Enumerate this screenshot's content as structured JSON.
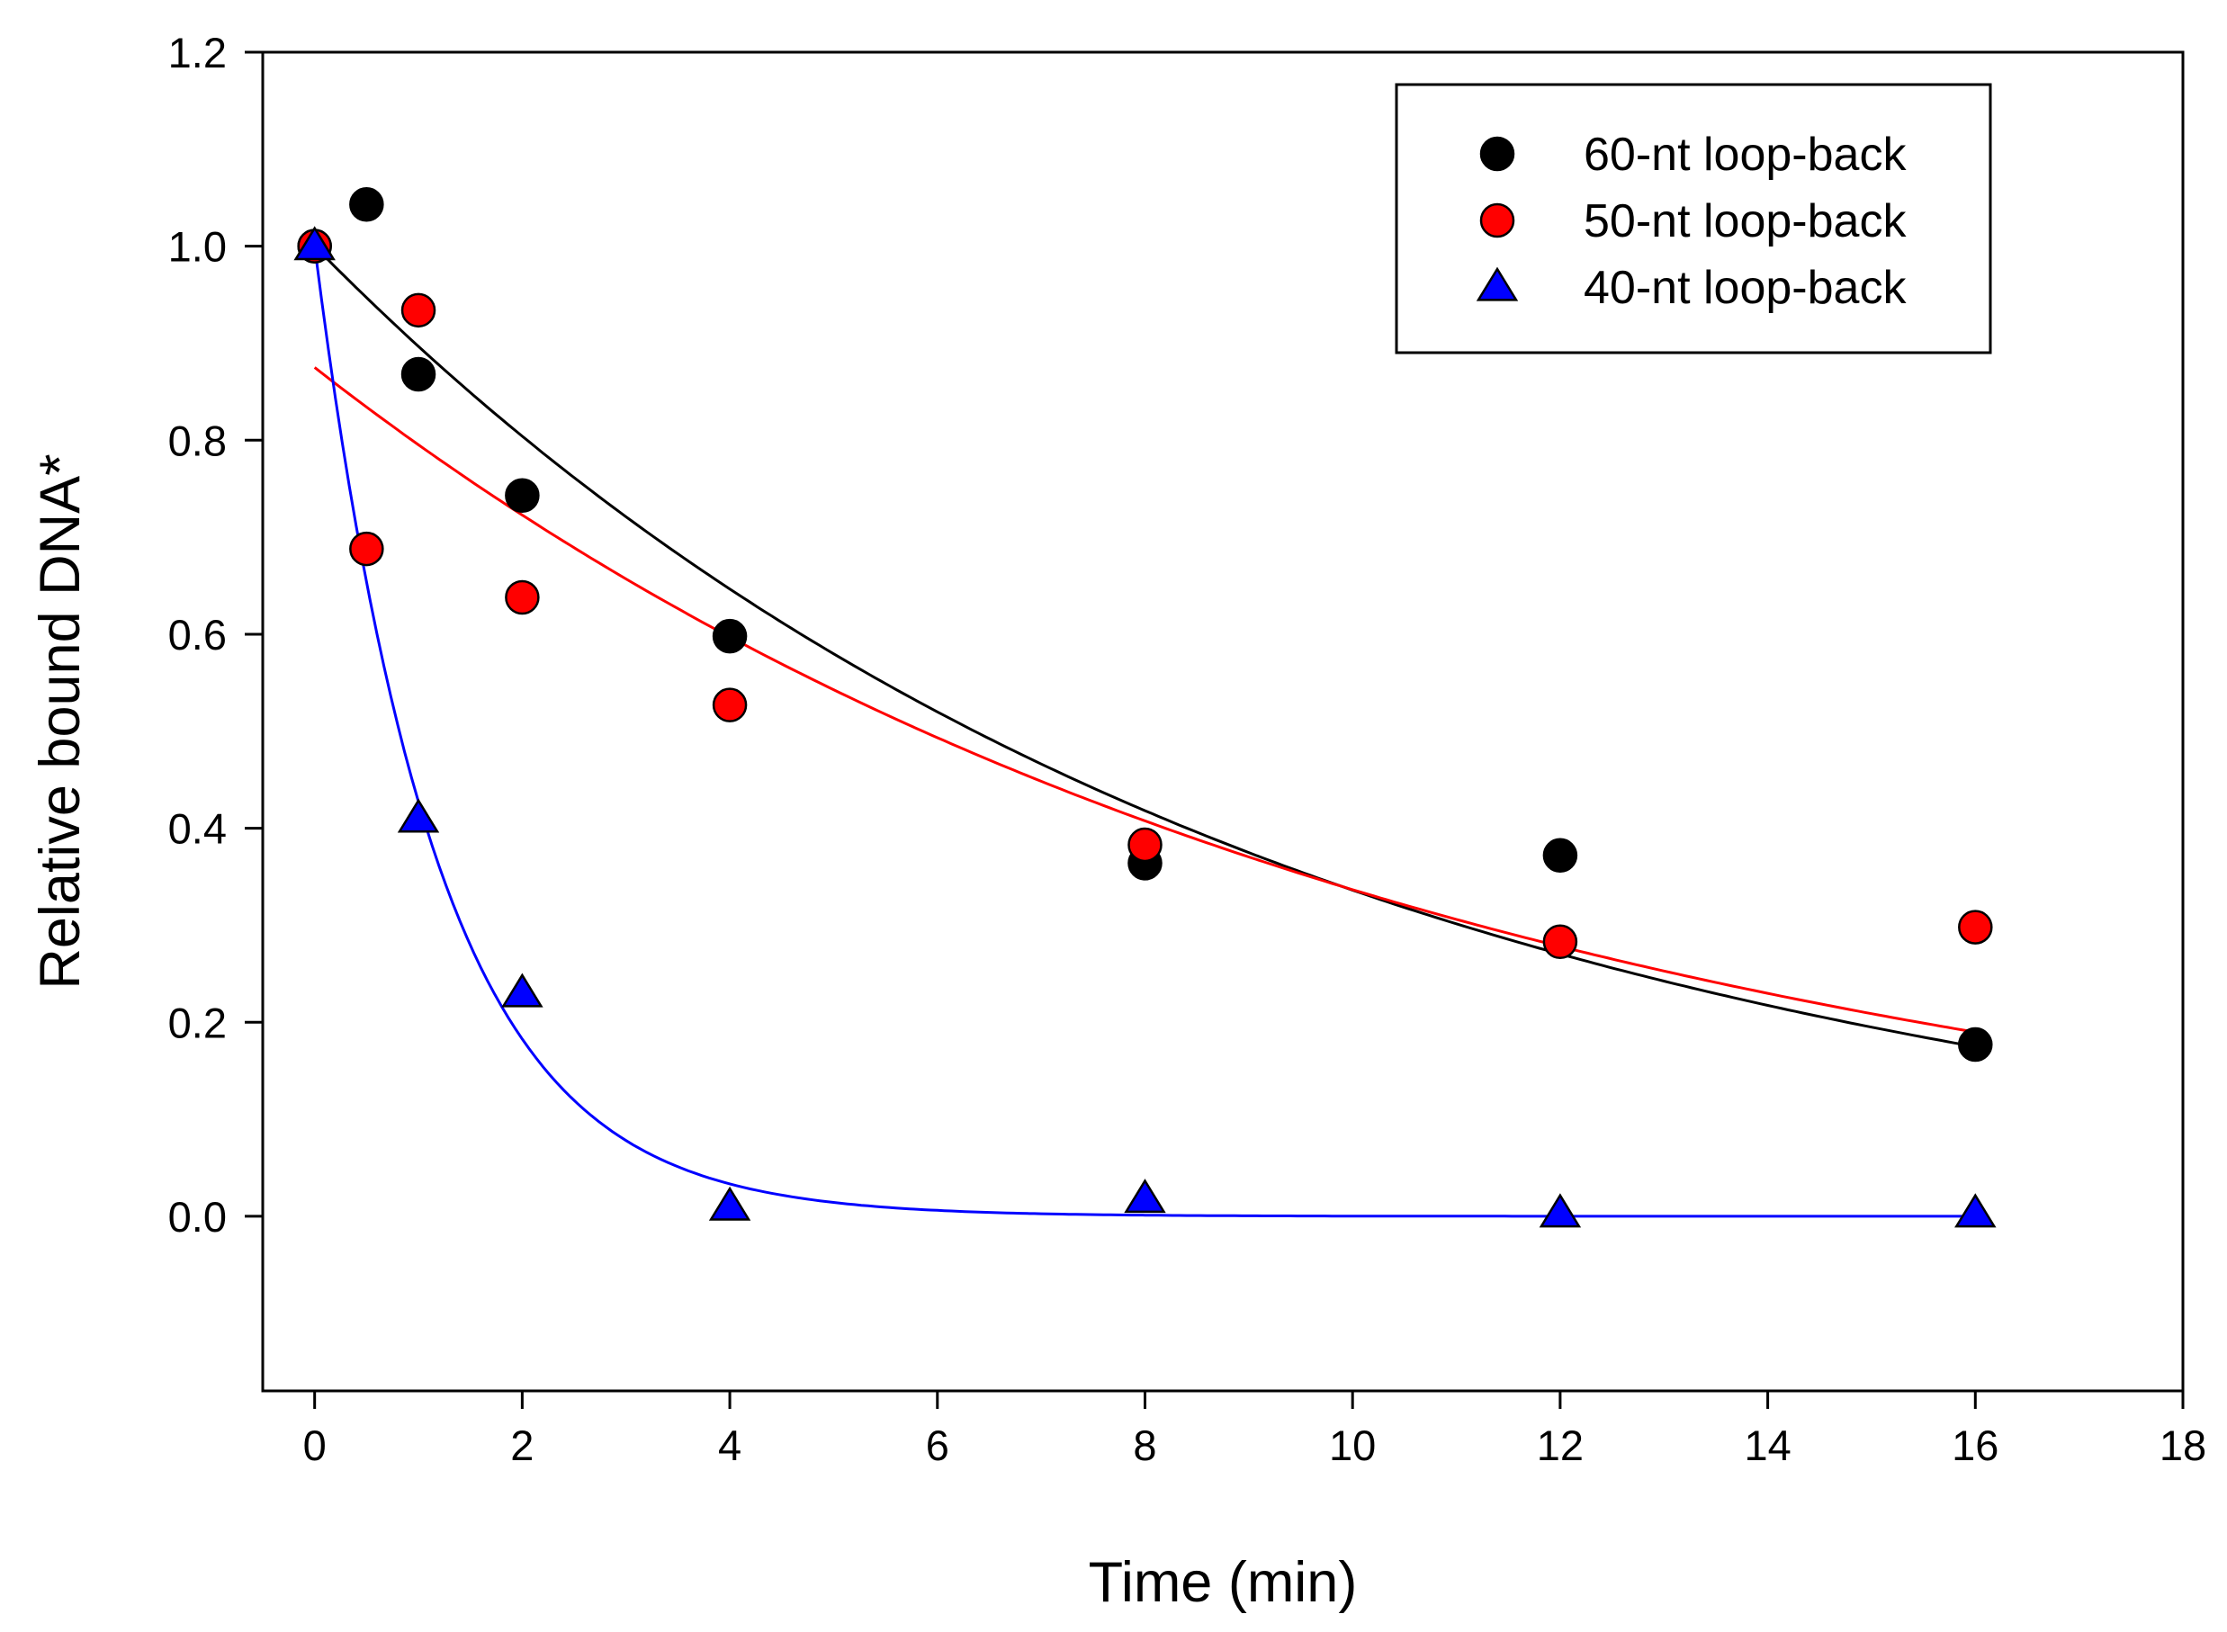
{
  "chart_data": {
    "type": "scatter",
    "title": "",
    "xlabel": "Time (min)",
    "ylabel": "Relative bound DNA*",
    "xlim": [
      -0.5,
      18
    ],
    "ylim": [
      -0.18,
      1.2
    ],
    "xticks": [
      0,
      2,
      4,
      6,
      8,
      10,
      12,
      14,
      16,
      18
    ],
    "xtick_labels": [
      "0",
      "2",
      "4",
      "6",
      "8",
      "10",
      "12",
      "14",
      "16",
      "18"
    ],
    "yticks": [
      0.0,
      0.2,
      0.4,
      0.6,
      0.8,
      1.0,
      1.2
    ],
    "ytick_labels": [
      "0.0",
      "0.2",
      "0.4",
      "0.6",
      "0.8",
      "1.0",
      "1.2"
    ],
    "grid": false,
    "legend_position": "top-right",
    "series": [
      {
        "name": "60-nt loop-back",
        "marker": "circle",
        "color": "#000000",
        "x": [
          0,
          0.5,
          1,
          2,
          4,
          8,
          12,
          16
        ],
        "y": [
          1.0,
          1.043,
          0.868,
          0.743,
          0.598,
          0.364,
          0.372,
          0.177
        ],
        "fit": {
          "model": "y = a*exp(-k*x)",
          "a": 1.0,
          "k": 0.109,
          "x_range": [
            0,
            16
          ],
          "color": "#000000"
        }
      },
      {
        "name": "50-nt loop-back",
        "marker": "circle",
        "color": "#ff0000",
        "x": [
          0,
          0.5,
          1,
          2,
          4,
          8,
          12,
          16
        ],
        "y": [
          1.0,
          0.688,
          0.934,
          0.638,
          0.527,
          0.383,
          0.283,
          0.298
        ],
        "fit": {
          "model": "y = a*exp(-k*x)",
          "a": 0.875,
          "k": 0.0955,
          "x_range": [
            0,
            16
          ],
          "color": "#ff0000"
        }
      },
      {
        "name": "40-nt loop-back",
        "marker": "triangle",
        "color": "#0000ff",
        "x": [
          0,
          1,
          2,
          4,
          8,
          12,
          16
        ],
        "y": [
          1.0,
          0.41,
          0.23,
          0.01,
          0.018,
          0.003,
          0.003
        ],
        "fit": {
          "model": "y = a*exp(-k*x)",
          "a": 1.0,
          "k": 0.85,
          "x_range": [
            0,
            16
          ],
          "color": "#0000ff"
        }
      }
    ]
  }
}
